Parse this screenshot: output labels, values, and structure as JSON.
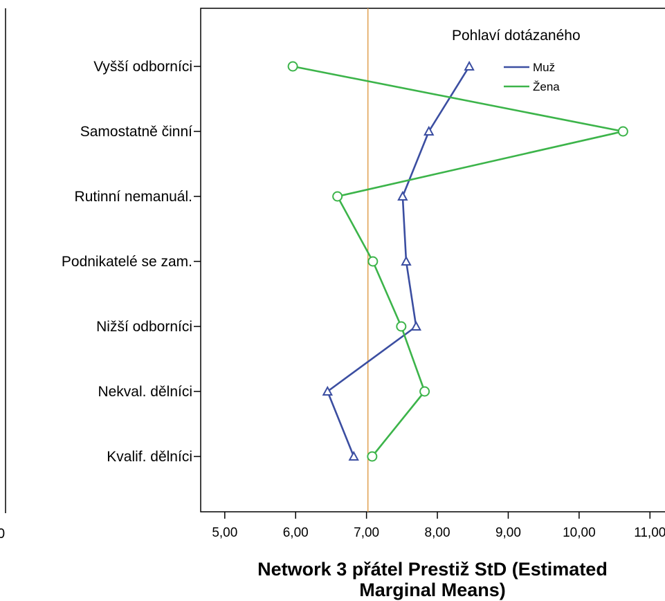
{
  "chart_data": {
    "type": "line",
    "orientation": "horizontal",
    "categories": [
      "Vyšší odborníci",
      "Samostatně činní",
      "Rutinní nemanuál.",
      "Podnikatelé se zam.",
      "Nižší odborníci",
      "Nekval. dělníci",
      "Kvalif. dělníci"
    ],
    "series": [
      {
        "name": "Muž",
        "color": "#3b4ea1",
        "marker": "triangle",
        "values": [
          8.45,
          7.88,
          7.51,
          7.56,
          7.7,
          6.45,
          6.82
        ]
      },
      {
        "name": "Žena",
        "color": "#3cb44a",
        "marker": "circle",
        "values": [
          5.96,
          10.62,
          6.59,
          7.09,
          7.49,
          7.82,
          7.08
        ]
      }
    ],
    "xlabel_lines": [
      "Network 3 přátel Prestiž StD (Estimated",
      "Marginal Means)"
    ],
    "xticks": [
      "5,00",
      "6,00",
      "7,00",
      "8,00",
      "9,00",
      "10,00",
      "11,00"
    ],
    "xlim": [
      4.66,
      11.3
    ],
    "reference_line": {
      "x": 7.02,
      "color": "#e0a050"
    },
    "legend": {
      "title": "Pohlaví dotázaného",
      "position": "top-right"
    },
    "grid": false
  }
}
